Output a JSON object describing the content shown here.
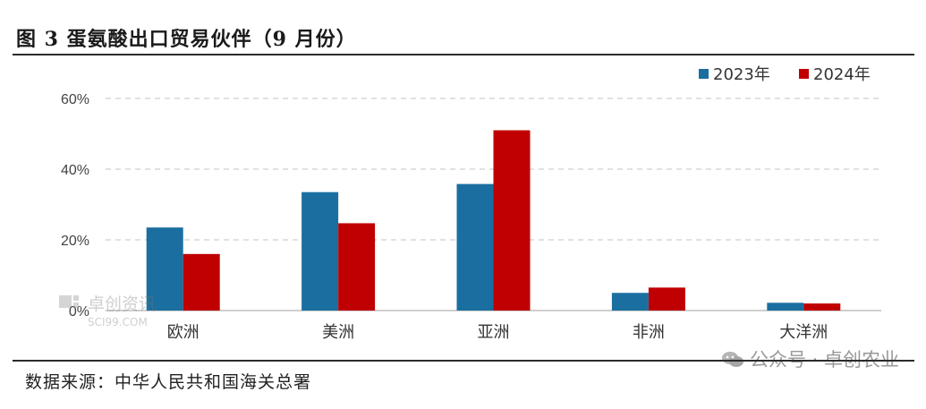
{
  "title": "图 3  蛋氨酸出口贸易伙伴（9 月份）",
  "source": "数据来源：中华人民共和国海关总署",
  "watermark": {
    "text": "公众号 · 卓创农业",
    "logo_text": "卓创资讯",
    "logo_url": "SCI99.COM"
  },
  "colors": {
    "s2023": "#1a6fa0",
    "s2024": "#c00000",
    "grid": "#cfcfcf",
    "axis": "#bfbfbf"
  },
  "chart_data": {
    "type": "bar",
    "categories": [
      "欧洲",
      "美洲",
      "亚洲",
      "非洲",
      "大洋洲"
    ],
    "series": [
      {
        "name": "2023年",
        "values": [
          23.5,
          33.5,
          35.8,
          5.0,
          2.2
        ]
      },
      {
        "name": "2024年",
        "values": [
          16.0,
          24.7,
          51.0,
          6.5,
          2.0
        ]
      }
    ],
    "ylim": [
      0,
      60
    ],
    "yticks": [
      0,
      20,
      40,
      60
    ],
    "ytick_labels": [
      "0%",
      "20%",
      "40%",
      "60%"
    ],
    "grid": true,
    "legend_position": "top-right",
    "xlabel": "",
    "ylabel": ""
  }
}
